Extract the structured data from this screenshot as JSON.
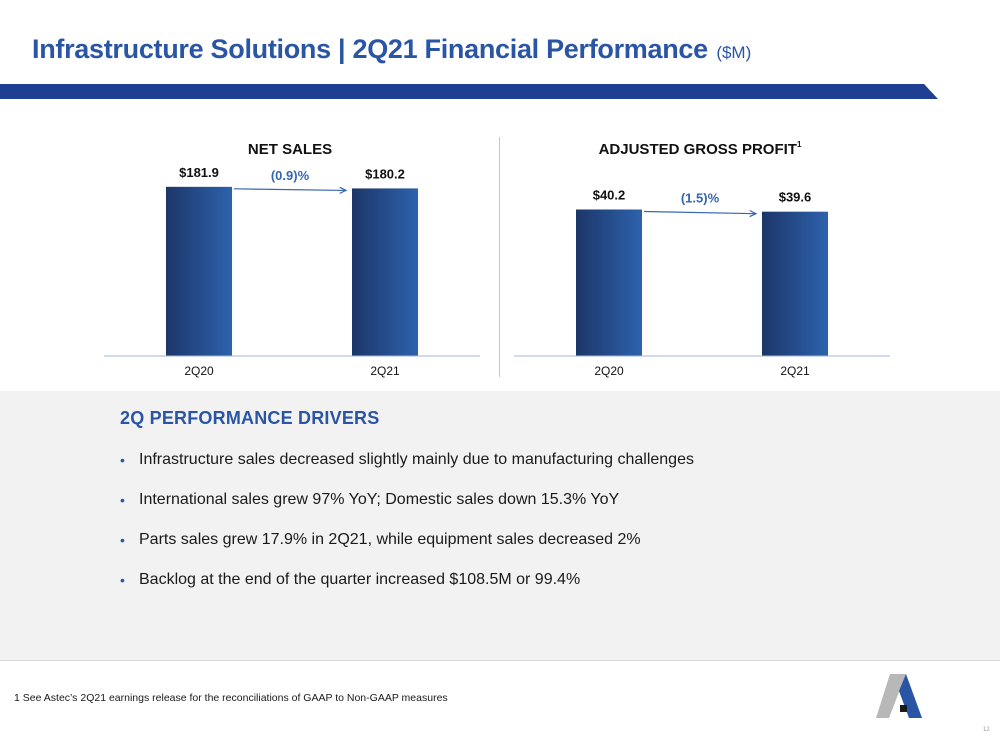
{
  "header": {
    "title": "Infrastructure Solutions | 2Q21 Financial Performance",
    "unit": "($M)"
  },
  "colors": {
    "accent": "#2a55a5",
    "banner": "#1f3f93",
    "bar_dark": "#1c3668",
    "bar_light": "#2d62ad",
    "arrow": "#3566b0"
  },
  "chart_data": [
    {
      "type": "bar",
      "title": "NET SALES",
      "title_sup": "",
      "categories": [
        "2Q20",
        "2Q21"
      ],
      "values": [
        181.9,
        180.2
      ],
      "value_labels": [
        "$181.9",
        "$180.2"
      ],
      "change_label": "(0.9)%",
      "ylim": [
        0,
        200
      ],
      "grid": false
    },
    {
      "type": "bar",
      "title": "ADJUSTED GROSS PROFIT",
      "title_sup": "1",
      "categories": [
        "2Q20",
        "2Q21"
      ],
      "values": [
        40.2,
        39.6
      ],
      "value_labels": [
        "$40.2",
        "$39.6"
      ],
      "change_label": "(1.5)%",
      "ylim": [
        0,
        45
      ],
      "grid": false
    }
  ],
  "drivers": {
    "heading": "2Q PERFORMANCE DRIVERS",
    "bullet": "•",
    "items": [
      "Infrastructure sales decreased slightly mainly due to manufacturing challenges",
      "International sales grew 97% YoY; Domestic sales down 15.3% YoY",
      "Parts sales grew 17.9% in 2Q21, while equipment sales decreased 2%",
      "Backlog at the end of the quarter increased $108.5M or 99.4%"
    ]
  },
  "footnote": "1 See Astec’s 2Q21 earnings release for the reconciliations of GAAP to Non-GAAP measures",
  "logo": {
    "icon": "astec-a-logo-icon"
  },
  "page_number": "12"
}
